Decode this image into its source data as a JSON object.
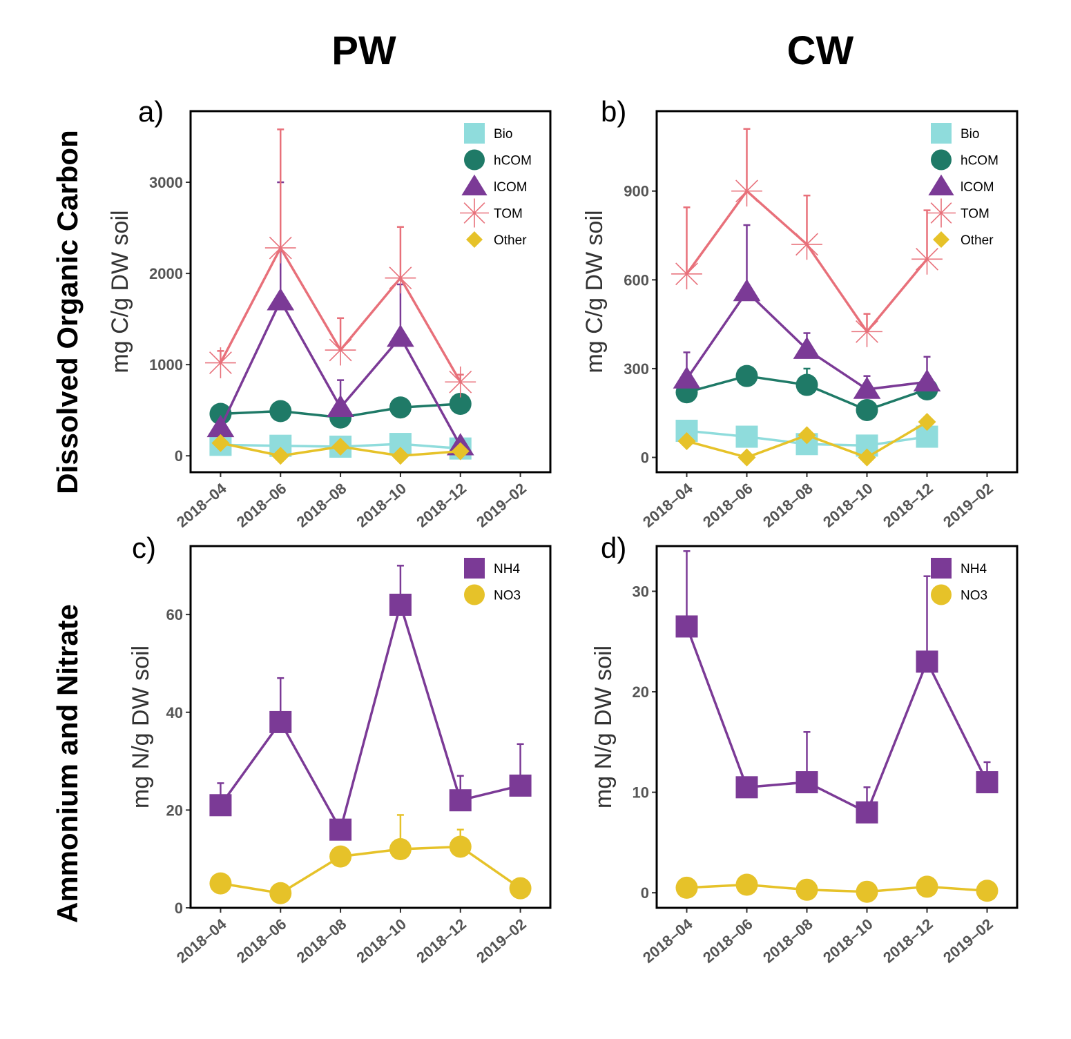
{
  "column_titles": [
    "PW",
    "CW"
  ],
  "row_titles": [
    "Dissolved Organic Carbon",
    "Ammonium and Nitrate"
  ],
  "chart_data": [
    {
      "panel": "a)",
      "type": "line",
      "ylabel": "mg C/g DW soil",
      "x_ticks": [
        "2018–04",
        "2018–06",
        "2018–08",
        "2018–10",
        "2018–12",
        "2019–02"
      ],
      "x": [
        "2018-04",
        "2018-06",
        "2018-08",
        "2018-10",
        "2018-12"
      ],
      "xlim": [
        "2018-03",
        "2019-03"
      ],
      "ylim": [
        -180,
        3780
      ],
      "y_ticks": [
        0,
        1000,
        2000,
        3000
      ],
      "legend_position": "top-right",
      "series": [
        {
          "name": "Bio",
          "marker": "square",
          "color": "#8fdcdc",
          "values": [
            120,
            110,
            100,
            130,
            80
          ],
          "errors": [
            0,
            0,
            0,
            0,
            0
          ]
        },
        {
          "name": "hCOM",
          "marker": "circle",
          "color": "#1f7a67",
          "values": [
            460,
            490,
            420,
            530,
            570
          ],
          "errors": [
            0,
            0,
            0,
            0,
            0
          ]
        },
        {
          "name": "lCOM",
          "marker": "triangle",
          "color": "#7b3a96",
          "values": [
            310,
            1700,
            530,
            1300,
            110
          ],
          "errors": [
            0,
            1300,
            300,
            580,
            0
          ]
        },
        {
          "name": "TOM",
          "marker": "asterisk",
          "color": "#e8707a",
          "values": [
            1020,
            2280,
            1160,
            1950,
            810
          ],
          "errors": [
            130,
            1300,
            350,
            560,
            80
          ]
        },
        {
          "name": "Other",
          "marker": "diamond",
          "color": "#e6c229",
          "values": [
            140,
            0,
            100,
            0,
            50
          ],
          "errors": [
            0,
            0,
            0,
            0,
            0
          ]
        }
      ]
    },
    {
      "panel": "b)",
      "type": "line",
      "ylabel": "mg C/g DW soil",
      "x_ticks": [
        "2018–04",
        "2018–06",
        "2018–08",
        "2018–10",
        "2018–12",
        "2019–02"
      ],
      "x": [
        "2018-04",
        "2018-06",
        "2018-08",
        "2018-10",
        "2018-12"
      ],
      "xlim": [
        "2018-03",
        "2019-03"
      ],
      "ylim": [
        -50,
        1170
      ],
      "y_ticks": [
        0,
        300,
        600,
        900
      ],
      "legend_position": "top-right",
      "series": [
        {
          "name": "Bio",
          "marker": "square",
          "color": "#8fdcdc",
          "values": [
            90,
            70,
            45,
            40,
            70
          ],
          "errors": [
            0,
            0,
            0,
            0,
            0
          ]
        },
        {
          "name": "hCOM",
          "marker": "circle",
          "color": "#1f7a67",
          "values": [
            220,
            275,
            245,
            160,
            230
          ],
          "errors": [
            0,
            0,
            55,
            0,
            0
          ]
        },
        {
          "name": "lCOM",
          "marker": "triangle",
          "color": "#7b3a96",
          "values": [
            265,
            560,
            365,
            230,
            255
          ],
          "errors": [
            90,
            225,
            55,
            45,
            85
          ]
        },
        {
          "name": "TOM",
          "marker": "asterisk",
          "color": "#e8707a",
          "values": [
            620,
            900,
            720,
            425,
            670
          ],
          "errors": [
            225,
            210,
            165,
            60,
            165
          ]
        },
        {
          "name": "Other",
          "marker": "diamond",
          "color": "#e6c229",
          "values": [
            55,
            0,
            75,
            0,
            120
          ],
          "errors": [
            0,
            0,
            0,
            0,
            0
          ]
        }
      ]
    },
    {
      "panel": "c)",
      "type": "line",
      "ylabel": "mg N/g DW soil",
      "x_ticks": [
        "2018–04",
        "2018–06",
        "2018–08",
        "2018–10",
        "2018–12",
        "2019–02"
      ],
      "x": [
        "2018-04",
        "2018-06",
        "2018-08",
        "2018-10",
        "2018-12",
        "2019-02"
      ],
      "xlim": [
        "2018-03",
        "2019-03"
      ],
      "ylim": [
        0,
        74
      ],
      "y_ticks": [
        0,
        20,
        40,
        60
      ],
      "legend_position": "top-right",
      "series": [
        {
          "name": "NH4",
          "marker": "square",
          "color": "#7b3a96",
          "values": [
            21,
            38,
            16,
            62,
            22,
            25
          ],
          "errors": [
            4.5,
            9,
            0,
            8,
            5,
            8.5
          ]
        },
        {
          "name": "NO3",
          "marker": "circle",
          "color": "#e6c229",
          "values": [
            5,
            3,
            10.5,
            12,
            12.5,
            4
          ],
          "errors": [
            0,
            0,
            0,
            7,
            3.5,
            2
          ]
        }
      ]
    },
    {
      "panel": "d)",
      "type": "line",
      "ylabel": "mg N/g DW soil",
      "x_ticks": [
        "2018–04",
        "2018–06",
        "2018–08",
        "2018–10",
        "2018–12",
        "2019–02"
      ],
      "x": [
        "2018-04",
        "2018-06",
        "2018-08",
        "2018-10",
        "2018-12",
        "2019-02"
      ],
      "xlim": [
        "2018-03",
        "2019-03"
      ],
      "ylim": [
        -1.5,
        34.5
      ],
      "y_ticks": [
        0,
        10,
        20,
        30
      ],
      "legend_position": "top-right",
      "series": [
        {
          "name": "NH4",
          "marker": "square",
          "color": "#7b3a96",
          "values": [
            26.5,
            10.5,
            11,
            8,
            23,
            11
          ],
          "errors": [
            7.5,
            0,
            5,
            2.5,
            8.5,
            2
          ]
        },
        {
          "name": "NO3",
          "marker": "circle",
          "color": "#e6c229",
          "values": [
            0.5,
            0.8,
            0.3,
            0.1,
            0.6,
            0.2
          ],
          "errors": [
            0,
            0,
            0,
            0,
            0,
            0
          ]
        }
      ]
    }
  ]
}
